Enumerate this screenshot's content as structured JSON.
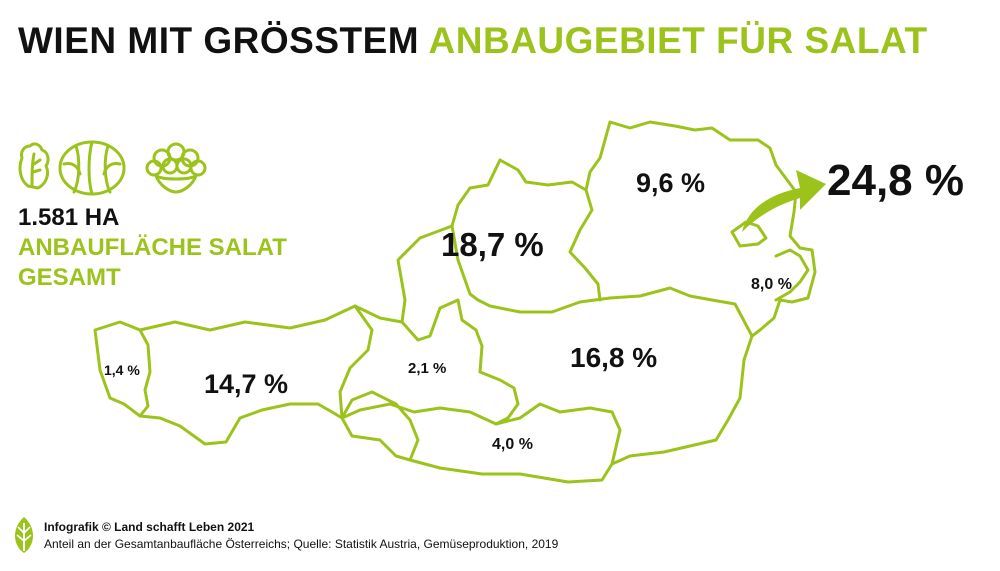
{
  "title": {
    "part1": "WIEN MIT GRÖSSTEM",
    "part2": "ANBAUGEBIET FÜR SALAT"
  },
  "stats": {
    "area": "1.581 HA",
    "label_line1": "ANBAUFLÄCHE SALAT",
    "label_line2": "GESAMT"
  },
  "regions": {
    "vorarlberg": "1,4 %",
    "tirol": "14,7 %",
    "salzburg": "2,1 %",
    "kaernten": "4,0 %",
    "steiermark": "16,8 %",
    "oberoesterreich": "18,7 %",
    "niederoesterreich": "9,6 %",
    "wien": "24,8 %",
    "burgenland": "8,0 %"
  },
  "footer": {
    "credit": "Infografik © Land schafft Leben 2021",
    "source": "Anteil an der Gesamtanbaufläche Österreichs; Quelle: Statistik Austria, Gemüseproduktion, 2019"
  },
  "colors": {
    "accent": "#9bc31c",
    "text": "#111111"
  },
  "icons": [
    "lettuce-icon",
    "cabbage-icon",
    "cauliflower-icon",
    "leaf-logo-icon"
  ]
}
